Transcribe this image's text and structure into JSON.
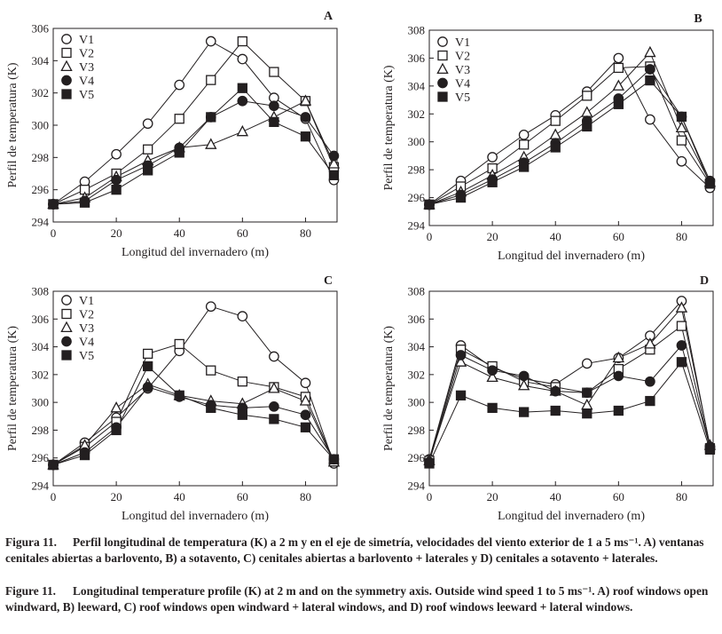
{
  "figure": {
    "xlabel": "Longitud del invernadero (m)",
    "ylabel": "Perfil de temperatura (K)",
    "legend": [
      "V1",
      "V2",
      "V3",
      "V4",
      "V5"
    ],
    "markers": [
      "circle-open",
      "square-open",
      "triangle-open",
      "circle-filled",
      "square-filled"
    ]
  },
  "chart_data": [
    {
      "panel": "A",
      "type": "line",
      "title": "A",
      "xlabel": "Longitud del invernadero (m)",
      "ylabel": "Perfil de temperatura (K)",
      "xlim": [
        0,
        90
      ],
      "ylim": [
        294,
        306
      ],
      "xticks": [
        0,
        20,
        40,
        60,
        80
      ],
      "yticks": [
        294,
        296,
        298,
        300,
        302,
        304,
        306
      ],
      "legend_position": "top-left",
      "x": [
        0,
        10,
        20,
        30,
        40,
        50,
        60,
        70,
        80,
        89
      ],
      "series": [
        {
          "name": "V1",
          "values": [
            295.1,
            296.5,
            298.2,
            300.1,
            302.5,
            305.2,
            304.1,
            301.7,
            300.4,
            296.6
          ]
        },
        {
          "name": "V2",
          "values": [
            295.1,
            296.0,
            297.0,
            298.5,
            300.4,
            302.8,
            305.2,
            303.3,
            301.5,
            297.4
          ]
        },
        {
          "name": "V3",
          "values": [
            295.1,
            295.5,
            296.8,
            297.8,
            298.6,
            298.8,
            299.6,
            300.5,
            301.5,
            297.6
          ]
        },
        {
          "name": "V4",
          "values": [
            295.1,
            295.3,
            296.6,
            297.5,
            298.6,
            300.5,
            301.5,
            301.2,
            300.5,
            298.1
          ]
        },
        {
          "name": "V5",
          "values": [
            295.1,
            295.2,
            296.0,
            297.2,
            298.3,
            300.5,
            302.3,
            300.2,
            299.3,
            296.9
          ]
        }
      ]
    },
    {
      "panel": "B",
      "type": "line",
      "title": "B",
      "xlabel": "Longitud del invernadero (m)",
      "ylabel": "Perfil de temperatura (K)",
      "xlim": [
        0,
        90
      ],
      "ylim": [
        294,
        308
      ],
      "xticks": [
        0,
        20,
        40,
        60,
        80
      ],
      "yticks": [
        294,
        296,
        298,
        300,
        302,
        304,
        306,
        308
      ],
      "legend_position": "top-left",
      "x": [
        0,
        10,
        20,
        30,
        40,
        50,
        60,
        70,
        80,
        89
      ],
      "series": [
        {
          "name": "V1",
          "values": [
            295.5,
            297.2,
            298.9,
            300.5,
            301.9,
            303.6,
            306.0,
            301.6,
            298.6,
            296.7
          ]
        },
        {
          "name": "V2",
          "values": [
            295.5,
            296.8,
            298.1,
            299.8,
            301.5,
            303.3,
            305.3,
            305.4,
            300.1,
            297.0
          ]
        },
        {
          "name": "V3",
          "values": [
            295.5,
            296.4,
            297.6,
            298.9,
            300.5,
            302.1,
            304.0,
            306.4,
            301.0,
            297.1
          ]
        },
        {
          "name": "V4",
          "values": [
            295.5,
            296.2,
            297.3,
            298.5,
            299.9,
            301.5,
            303.1,
            305.2,
            301.8,
            297.2
          ]
        },
        {
          "name": "V5",
          "values": [
            295.5,
            296.0,
            297.1,
            298.2,
            299.6,
            301.1,
            302.7,
            304.4,
            301.8,
            297.0
          ]
        }
      ]
    },
    {
      "panel": "C",
      "type": "line",
      "title": "C",
      "xlabel": "Longitud del invernadero (m)",
      "ylabel": "Perfil de temperatura (K)",
      "xlim": [
        0,
        90
      ],
      "ylim": [
        294,
        308
      ],
      "xticks": [
        0,
        20,
        40,
        60,
        80
      ],
      "yticks": [
        294,
        296,
        298,
        300,
        302,
        304,
        306,
        308
      ],
      "legend_position": "top-left",
      "x": [
        0,
        10,
        20,
        30,
        40,
        50,
        60,
        70,
        80,
        89
      ],
      "series": [
        {
          "name": "V1",
          "values": [
            295.5,
            297.1,
            298.9,
            301.0,
            303.7,
            306.9,
            306.2,
            303.3,
            301.4,
            295.6
          ]
        },
        {
          "name": "V2",
          "values": [
            295.5,
            296.8,
            298.6,
            303.5,
            304.2,
            302.3,
            301.5,
            301.1,
            300.4,
            295.8
          ]
        },
        {
          "name": "V3",
          "values": [
            295.5,
            296.9,
            299.6,
            301.3,
            300.5,
            300.1,
            299.9,
            301.0,
            300.1,
            295.7
          ]
        },
        {
          "name": "V4",
          "values": [
            295.5,
            296.4,
            298.2,
            301.1,
            300.4,
            299.8,
            299.6,
            299.7,
            299.1,
            295.9
          ]
        },
        {
          "name": "V5",
          "values": [
            295.5,
            296.2,
            298.0,
            302.6,
            300.5,
            299.6,
            299.1,
            298.8,
            298.2,
            295.9
          ]
        }
      ]
    },
    {
      "panel": "D",
      "type": "line",
      "title": "D",
      "xlabel": "Longitud del invernadero (m)",
      "ylabel": "Perfil de temperatura (K)",
      "xlim": [
        0,
        90
      ],
      "ylim": [
        294,
        308
      ],
      "xticks": [
        0,
        20,
        40,
        60,
        80
      ],
      "yticks": [
        294,
        296,
        298,
        300,
        302,
        304,
        306,
        308
      ],
      "legend_position": "none",
      "x": [
        0,
        10,
        20,
        30,
        40,
        50,
        60,
        70,
        80,
        89
      ],
      "series": [
        {
          "name": "V1",
          "values": [
            295.9,
            304.1,
            302.5,
            301.7,
            301.3,
            302.8,
            303.2,
            304.8,
            307.3,
            296.8
          ]
        },
        {
          "name": "V2",
          "values": [
            295.8,
            303.8,
            302.6,
            301.5,
            301.1,
            300.7,
            302.4,
            303.8,
            305.5,
            296.7
          ]
        },
        {
          "name": "V3",
          "values": [
            295.8,
            302.9,
            301.8,
            301.2,
            300.8,
            299.8,
            303.2,
            304.2,
            306.8,
            296.9
          ]
        },
        {
          "name": "V4",
          "values": [
            295.7,
            303.4,
            302.3,
            301.9,
            300.8,
            300.7,
            301.9,
            301.5,
            304.1,
            296.8
          ]
        },
        {
          "name": "V5",
          "values": [
            295.6,
            300.5,
            299.6,
            299.3,
            299.4,
            299.2,
            299.4,
            300.1,
            302.9,
            296.6
          ]
        }
      ]
    }
  ],
  "caption_es": {
    "label": "Figura 11.",
    "text": "Perfil longitudinal de temperatura (K) a 2 m y en el eje de simetría, velocidades del viento exterior de 1 a 5 ms⁻¹. A) ventanas cenitales abiertas a barlovento, B) a sotavento, C) cenitales abiertas a barlovento + laterales y D) cenitales a sotavento + laterales."
  },
  "caption_en": {
    "label": "Figure 11.",
    "text": "Longitudinal temperature profile (K) at 2 m and on the symmetry axis. Outside wind speed 1 to 5 ms⁻¹. A) roof windows open windward, B) leeward, C) roof windows open windward + lateral windows, and D) roof windows leeward + lateral windows."
  }
}
